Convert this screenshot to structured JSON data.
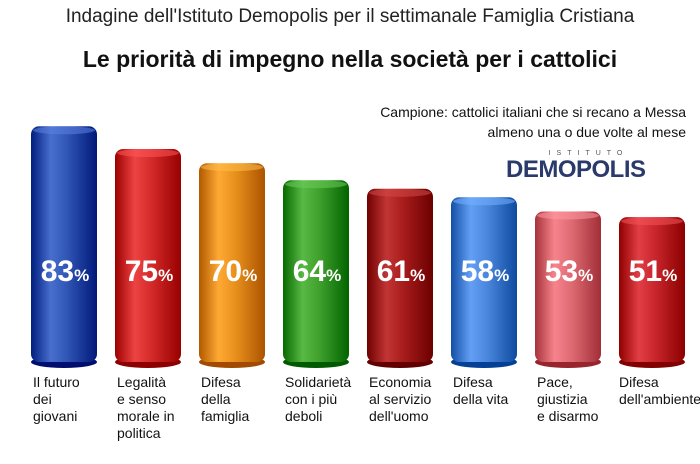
{
  "header": {
    "line1": "Indagine dell'Istituto Demopolis per il settimanale Famiglia Cristiana",
    "title": "Le priorità di impegno nella società per i cattolici"
  },
  "sample": {
    "line1": "Campione: cattolici italiani che si recano a Messa",
    "line2": "almeno una o due volte al mese"
  },
  "logo": {
    "top": "ISTITUTO",
    "name": "DEMOPOLIS"
  },
  "chart_data": {
    "type": "bar",
    "title": "Le priorità di impegno nella società per i cattolici",
    "xlabel": "",
    "ylabel": "",
    "ylim": [
      0,
      100
    ],
    "grid": false,
    "categories": [
      "Il futuro\ndei\ngiovani",
      "Legalità\ne senso\nmorale in\npolitica",
      "Difesa\ndella\nfamiglia",
      "Solidarietà\ncon i più\ndeboli",
      "Economia\nal servizio\ndell'uomo",
      "Difesa\ndella vita",
      "Pace,\ngiustizia\ne disarmo",
      "Difesa\ndell'ambiente"
    ],
    "values": [
      83,
      75,
      70,
      64,
      61,
      58,
      53,
      51
    ],
    "value_labels": [
      "83",
      "75",
      "70",
      "64",
      "61",
      "58",
      "53",
      "51"
    ],
    "unit": "%",
    "colors": [
      "#2f55b5",
      "#d42a2a",
      "#e8901c",
      "#3fa02c",
      "#a81c1c",
      "#4a86dc",
      "#de6b73",
      "#c8262c"
    ]
  }
}
